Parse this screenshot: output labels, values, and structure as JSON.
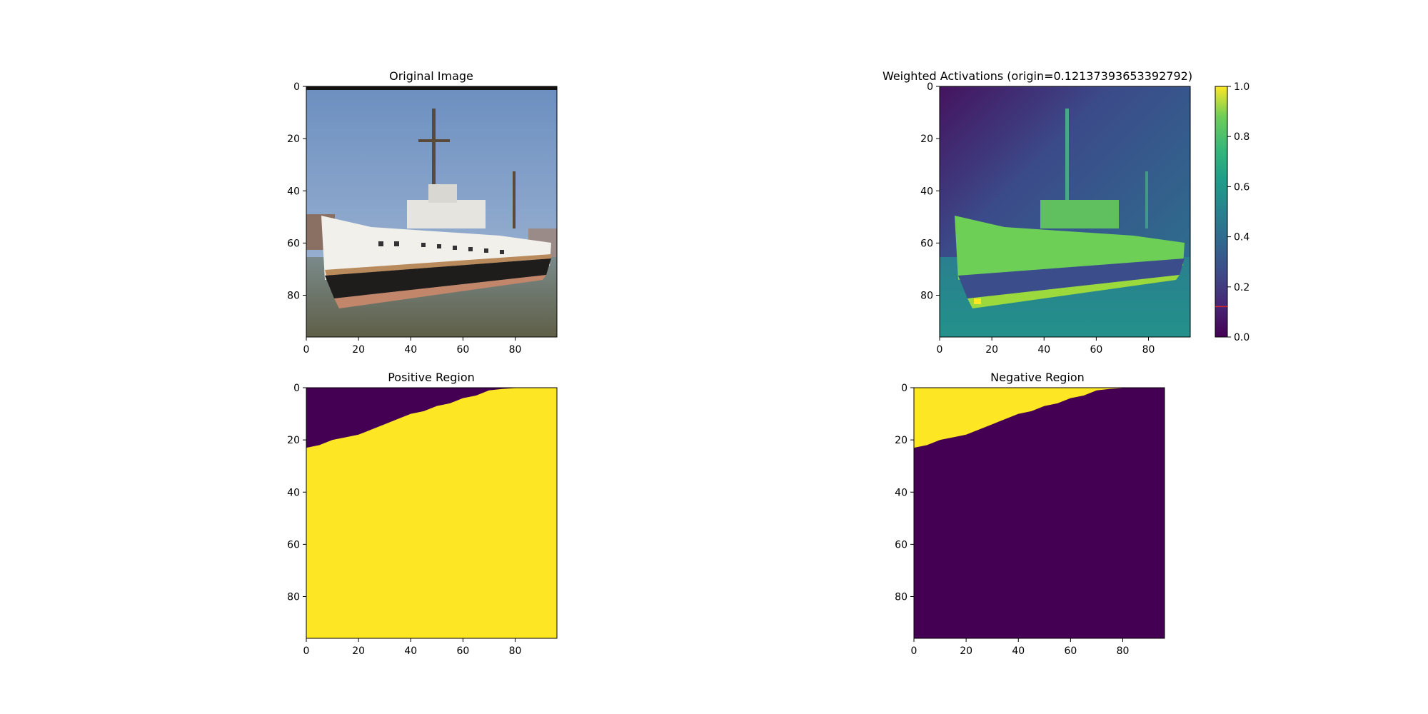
{
  "chart_data": [
    {
      "type": "heatmap",
      "title": "Original Image",
      "content": "photo of a ship (RGB image)",
      "x_ticks": [
        0,
        20,
        40,
        60,
        80
      ],
      "y_ticks": [
        0,
        20,
        40,
        60,
        80
      ],
      "xlim": [
        0,
        96
      ],
      "ylim": [
        96,
        0
      ]
    },
    {
      "type": "heatmap",
      "title": "Weighted Activations (origin=0.12137393653392792)",
      "colormap": "viridis",
      "x_ticks": [
        0,
        20,
        40,
        60,
        80
      ],
      "y_ticks": [
        0,
        20,
        40,
        60,
        80
      ],
      "xlim": [
        0,
        96
      ],
      "ylim": [
        96,
        0
      ],
      "colorbar": {
        "range": [
          0.0,
          1.0
        ],
        "ticks": [
          "0.0",
          "0.2",
          "0.4",
          "0.6",
          "0.8",
          "1.0"
        ],
        "marker_value": 0.12137393653392792,
        "marker_color": "#d62728"
      }
    },
    {
      "type": "heatmap",
      "title": "Positive Region",
      "colormap": "viridis",
      "x_ticks": [
        0,
        20,
        40,
        60,
        80
      ],
      "y_ticks": [
        0,
        20,
        40,
        60,
        80
      ],
      "xlim": [
        0,
        96
      ],
      "ylim": [
        96,
        0
      ],
      "values": "binary mask: 1 (yellow) below boundary, 0 (purple) above",
      "boundary": [
        [
          0,
          23
        ],
        [
          5,
          22
        ],
        [
          10,
          20
        ],
        [
          15,
          19
        ],
        [
          20,
          18
        ],
        [
          25,
          16
        ],
        [
          30,
          14
        ],
        [
          35,
          12
        ],
        [
          40,
          10
        ],
        [
          45,
          9
        ],
        [
          50,
          7
        ],
        [
          55,
          6
        ],
        [
          60,
          4
        ],
        [
          65,
          3
        ],
        [
          70,
          1
        ],
        [
          75,
          0.5
        ],
        [
          82,
          0
        ],
        [
          96,
          0
        ]
      ]
    },
    {
      "type": "heatmap",
      "title": "Negative Region",
      "colormap": "viridis",
      "x_ticks": [
        0,
        20,
        40,
        60,
        80
      ],
      "y_ticks": [
        0,
        20,
        40,
        60,
        80
      ],
      "xlim": [
        0,
        96
      ],
      "ylim": [
        96,
        0
      ],
      "values": "binary mask: 1 (yellow) above boundary, 0 (purple) below",
      "boundary": [
        [
          0,
          23
        ],
        [
          5,
          22
        ],
        [
          10,
          20
        ],
        [
          15,
          19
        ],
        [
          20,
          18
        ],
        [
          25,
          16
        ],
        [
          30,
          14
        ],
        [
          35,
          12
        ],
        [
          40,
          10
        ],
        [
          45,
          9
        ],
        [
          50,
          7
        ],
        [
          55,
          6
        ],
        [
          60,
          4
        ],
        [
          65,
          3
        ],
        [
          70,
          1
        ],
        [
          75,
          0.5
        ],
        [
          82,
          0
        ],
        [
          96,
          0
        ]
      ]
    }
  ],
  "colors": {
    "viridis_low": "#440154",
    "viridis_high": "#fde725",
    "sky": "#7b9cc6",
    "water": "#6b6f55",
    "hull_dark": "#1f1d1c",
    "hull_white": "#f2f0ea"
  }
}
